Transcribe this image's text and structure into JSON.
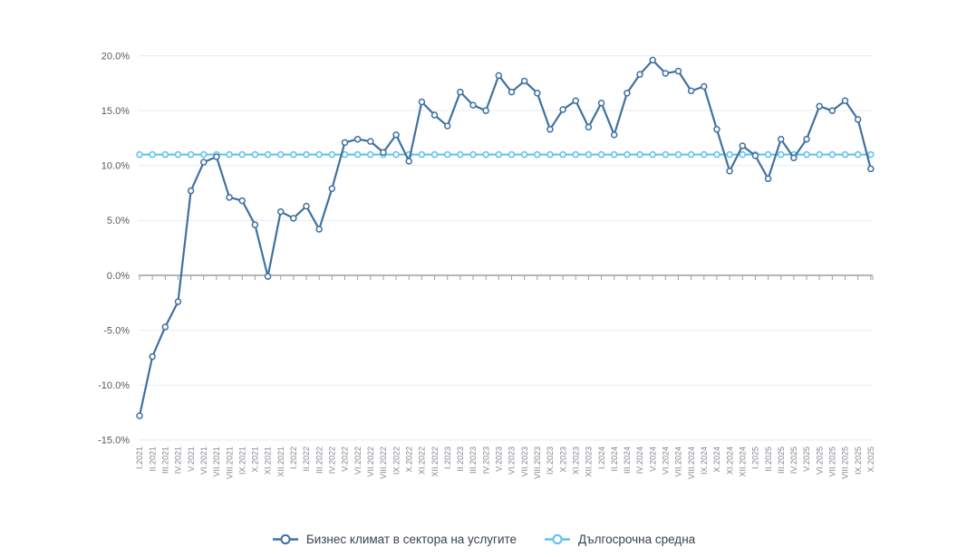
{
  "chart_data": {
    "type": "line",
    "title": "",
    "xlabel": "",
    "ylabel": "",
    "ylim": [
      -15,
      20
    ],
    "grid": true,
    "legend_position": "bottom",
    "x_labels": [
      "I.2021",
      "II.2021",
      "III.2021",
      "IV.2021",
      "V.2021",
      "VI.2021",
      "VII.2021",
      "VIII.2021",
      "IX.2021",
      "X.2021",
      "XI.2021",
      "XII.2021",
      "I.2022",
      "II.2022",
      "III.2022",
      "IV.2022",
      "V.2022",
      "VI.2022",
      "VII.2022",
      "VIII.2022",
      "IX.2022",
      "X.2022",
      "XI.2022",
      "XII.2022",
      "I.2023",
      "II.2023",
      "III.2023",
      "IV.2023",
      "V.2023",
      "VI.2023",
      "VII.2023",
      "VIII.2023",
      "IX.2023",
      "X.2023",
      "XI.2023",
      "XII.2023",
      "I.2024",
      "II.2024",
      "III.2024",
      "IV.2024",
      "V.2024",
      "VI.2024",
      "VII.2024",
      "VIII.2024",
      "IX.2024",
      "X.2024",
      "XI.2024",
      "XII.2024",
      "I.2025",
      "II.2025",
      "III.2025",
      "IV.2025",
      "V.2025",
      "VI.2025",
      "VII.2025",
      "VIII.2025",
      "IX.2025",
      "X.2025"
    ],
    "series": [
      {
        "name": "Бизнес климат в сектора на услугите",
        "color": "#40719f",
        "values": [
          -12.8,
          -7.4,
          -4.7,
          -2.4,
          7.7,
          10.3,
          10.8,
          7.1,
          6.8,
          4.6,
          -0.1,
          5.8,
          5.2,
          6.3,
          4.2,
          7.9,
          12.1,
          12.4,
          12.2,
          11.2,
          12.8,
          10.4,
          15.8,
          14.6,
          13.6,
          16.7,
          15.5,
          15.0,
          18.2,
          16.7,
          17.7,
          16.6,
          13.3,
          15.1,
          15.9,
          13.5,
          15.7,
          12.8,
          16.6,
          18.3,
          19.6,
          18.4,
          18.6,
          16.8,
          17.2,
          13.3,
          9.5,
          11.8,
          10.9,
          8.8,
          12.4,
          10.7,
          12.4,
          15.4,
          15.0,
          15.9,
          14.2,
          9.7
        ]
      },
      {
        "name": "Дългосрочна средна",
        "color": "#5ec1ea",
        "constant_value": 11.0
      }
    ],
    "y_ticks": {
      "values": [
        20,
        15,
        10,
        5,
        0,
        -5,
        -10,
        -15
      ],
      "labels": [
        "20.0%",
        "15.0%",
        "10.0%",
        "5.0%",
        "0.0%",
        "-5.0%",
        "-10.0%",
        "-15.0%"
      ]
    },
    "colors": {
      "gridline": "#e4ebf2",
      "axis": "#9a9ea4",
      "y_tick_label": "#58595b",
      "x_tick_label": "#81868e",
      "legend_text": "#3a4350",
      "background": "#ffffff"
    }
  }
}
